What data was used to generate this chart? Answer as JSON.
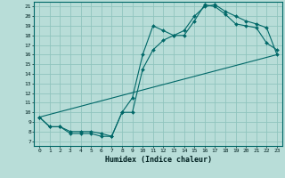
{
  "title": "",
  "xlabel": "Humidex (Indice chaleur)",
  "bg_color": "#b8ddd8",
  "grid_color": "#90c4be",
  "line_color": "#006868",
  "xlim": [
    -0.5,
    23.5
  ],
  "ylim": [
    6.5,
    21.5
  ],
  "xticks": [
    0,
    1,
    2,
    3,
    4,
    5,
    6,
    7,
    8,
    9,
    10,
    11,
    12,
    13,
    14,
    15,
    16,
    17,
    18,
    19,
    20,
    21,
    22,
    23
  ],
  "yticks": [
    7,
    8,
    9,
    10,
    11,
    12,
    13,
    14,
    15,
    16,
    17,
    18,
    19,
    20,
    21
  ],
  "line1_x": [
    0,
    1,
    2,
    3,
    4,
    5,
    6,
    7,
    8,
    9,
    10,
    11,
    12,
    13,
    14,
    15,
    16,
    17,
    18,
    19,
    20,
    21,
    22,
    23
  ],
  "line1_y": [
    9.5,
    8.5,
    8.5,
    7.8,
    7.8,
    7.8,
    7.5,
    7.5,
    10.0,
    11.5,
    16.0,
    19.0,
    18.5,
    18.0,
    18.0,
    19.5,
    21.2,
    21.0,
    20.2,
    19.2,
    19.0,
    18.8,
    17.2,
    16.5
  ],
  "line2_x": [
    0,
    1,
    2,
    3,
    4,
    5,
    6,
    7,
    8,
    9,
    10,
    11,
    12,
    13,
    14,
    15,
    16,
    17,
    18,
    19,
    20,
    21,
    22,
    23
  ],
  "line2_y": [
    9.5,
    8.5,
    8.5,
    8.0,
    8.0,
    8.0,
    7.8,
    7.5,
    10.0,
    10.0,
    14.5,
    16.5,
    17.5,
    18.0,
    18.5,
    20.0,
    21.0,
    21.2,
    20.5,
    20.0,
    19.5,
    19.2,
    18.8,
    16.0
  ],
  "line3_x": [
    0,
    23
  ],
  "line3_y": [
    9.5,
    16.0
  ]
}
